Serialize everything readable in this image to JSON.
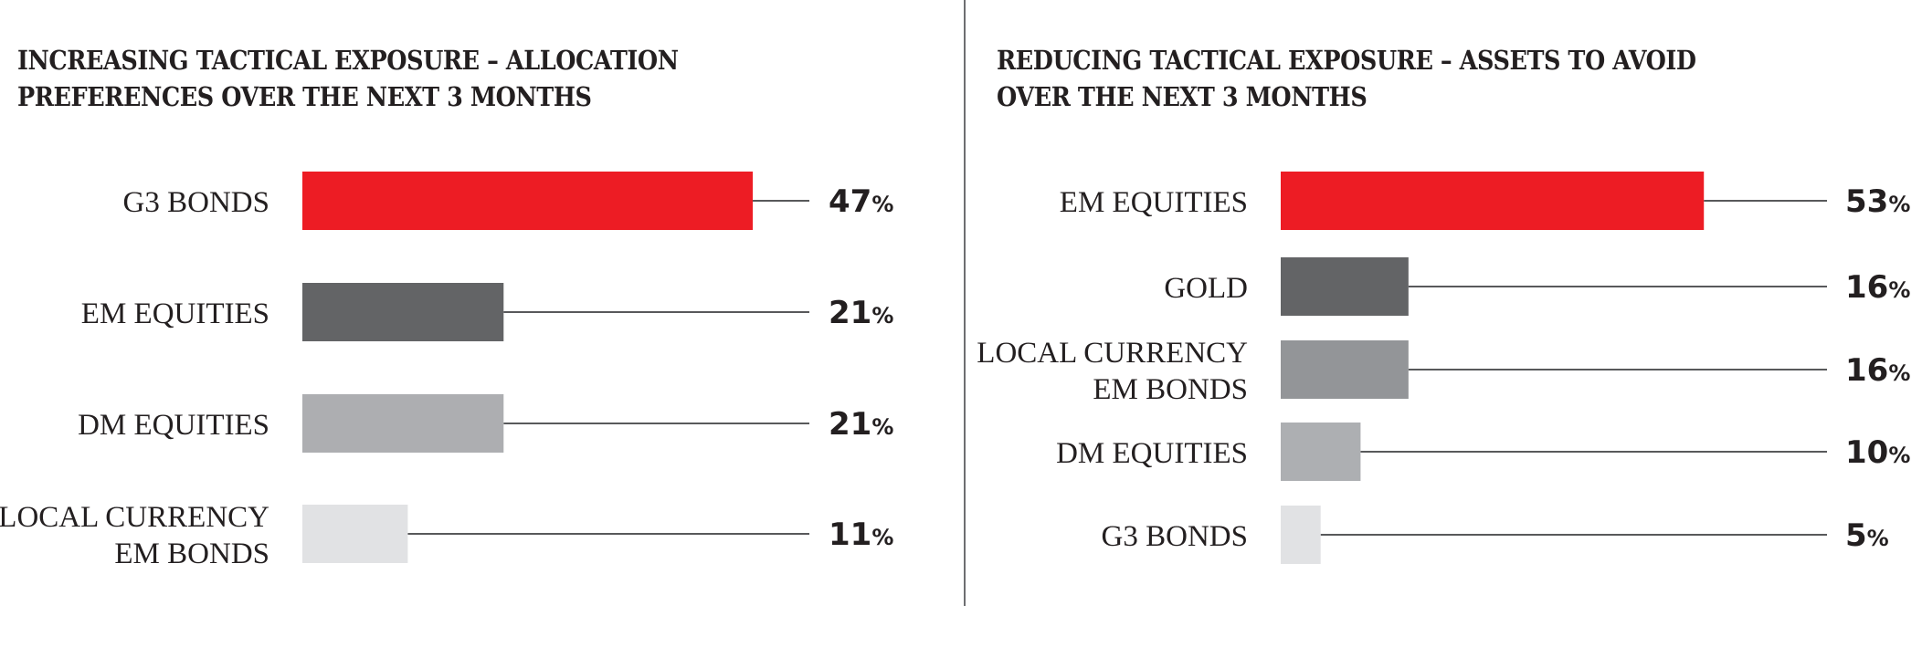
{
  "chart_data": [
    {
      "type": "bar",
      "orientation": "horizontal",
      "title_lines": [
        "INCREASING TACTICAL EXPOSURE – ALLOCATION",
        "PREFERENCES OVER THE NEXT 3 MONTHS"
      ],
      "categories": [
        [
          "G3 BONDS"
        ],
        [
          "EM EQUITIES"
        ],
        [
          "DM EQUITIES"
        ],
        [
          "LOCAL CURRENCY",
          "EM BONDS"
        ]
      ],
      "values": [
        47,
        21,
        21,
        11
      ],
      "unit": "%",
      "colors": [
        "#ED1C24",
        "#636466",
        "#ADAEB1",
        "#E1E2E4"
      ],
      "xlim": [
        0,
        53
      ],
      "grid": false
    },
    {
      "type": "bar",
      "orientation": "horizontal",
      "title_lines": [
        "REDUCING TACTICAL EXPOSURE – ASSETS TO AVOID",
        "OVER THE NEXT 3 MONTHS"
      ],
      "categories": [
        [
          "EM EQUITIES"
        ],
        [
          "GOLD"
        ],
        [
          "LOCAL CURRENCY",
          "EM BONDS"
        ],
        [
          "DM EQUITIES"
        ],
        [
          "G3 BONDS"
        ]
      ],
      "values": [
        53,
        16,
        16,
        10,
        5
      ],
      "unit": "%",
      "colors": [
        "#ED1C24",
        "#636466",
        "#939598",
        "#ADAFB2",
        "#E1E2E4"
      ],
      "xlim": [
        0,
        60
      ],
      "grid": false
    }
  ]
}
